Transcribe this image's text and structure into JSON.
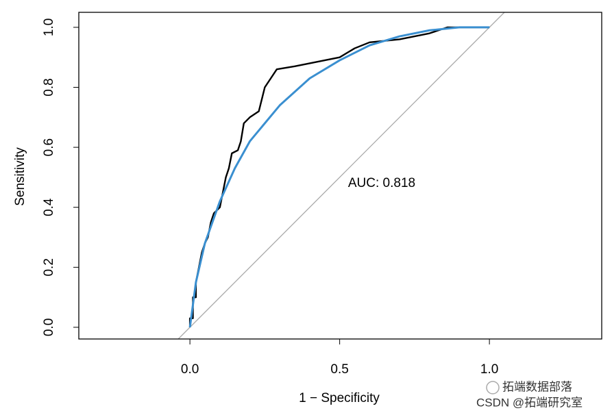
{
  "chart_data": {
    "type": "line",
    "x_label": "1 − Specificity",
    "y_label": "Sensitivity",
    "annotation": "AUC: 0.818",
    "xlim": [
      -0.371,
      1.375
    ],
    "ylim": [
      -0.039,
      1.05
    ],
    "xticks": [
      {
        "value": 0,
        "label": "0.0"
      },
      {
        "value": 0.5,
        "label": "0.5"
      },
      {
        "value": 1,
        "label": "1.0"
      }
    ],
    "yticks": [
      {
        "value": 0,
        "label": "0.0"
      },
      {
        "value": 0.2,
        "label": "0.2"
      },
      {
        "value": 0.4,
        "label": "0.4"
      },
      {
        "value": 0.6,
        "label": "0.6"
      },
      {
        "value": 0.8,
        "label": "0.8"
      },
      {
        "value": 1,
        "label": "1.0"
      }
    ],
    "grid": false,
    "reference_line_color": "#aaaaaa",
    "series": [
      {
        "color": "#000000",
        "x": [
          0,
          0,
          0.01,
          0.01,
          0.02,
          0.02,
          0.03,
          0.04,
          0.05,
          0.06,
          0.07,
          0.08,
          0.1,
          0.11,
          0.12,
          0.13,
          0.14,
          0.16,
          0.17,
          0.18,
          0.2,
          0.23,
          0.24,
          0.25,
          0.27,
          0.29,
          0.35,
          0.4,
          0.45,
          0.5,
          0.55,
          0.6,
          0.7,
          0.8,
          0.86,
          1.0
        ],
        "values": [
          0,
          0.03,
          0.03,
          0.1,
          0.1,
          0.15,
          0.2,
          0.25,
          0.28,
          0.3,
          0.35,
          0.38,
          0.4,
          0.45,
          0.5,
          0.53,
          0.58,
          0.59,
          0.62,
          0.68,
          0.7,
          0.72,
          0.76,
          0.8,
          0.83,
          0.86,
          0.87,
          0.88,
          0.89,
          0.9,
          0.93,
          0.95,
          0.96,
          0.98,
          1.0,
          1.0
        ]
      },
      {
        "color": "#3a8fd0",
        "x": [
          0,
          0.02,
          0.05,
          0.1,
          0.15,
          0.2,
          0.3,
          0.4,
          0.5,
          0.6,
          0.7,
          0.8,
          0.9,
          1.0
        ],
        "values": [
          0,
          0.15,
          0.28,
          0.42,
          0.53,
          0.62,
          0.74,
          0.83,
          0.89,
          0.94,
          0.97,
          0.99,
          1.0,
          1.0
        ]
      }
    ],
    "watermark": [
      "拓端数据部落",
      "CSDN @拓端研究室"
    ]
  }
}
